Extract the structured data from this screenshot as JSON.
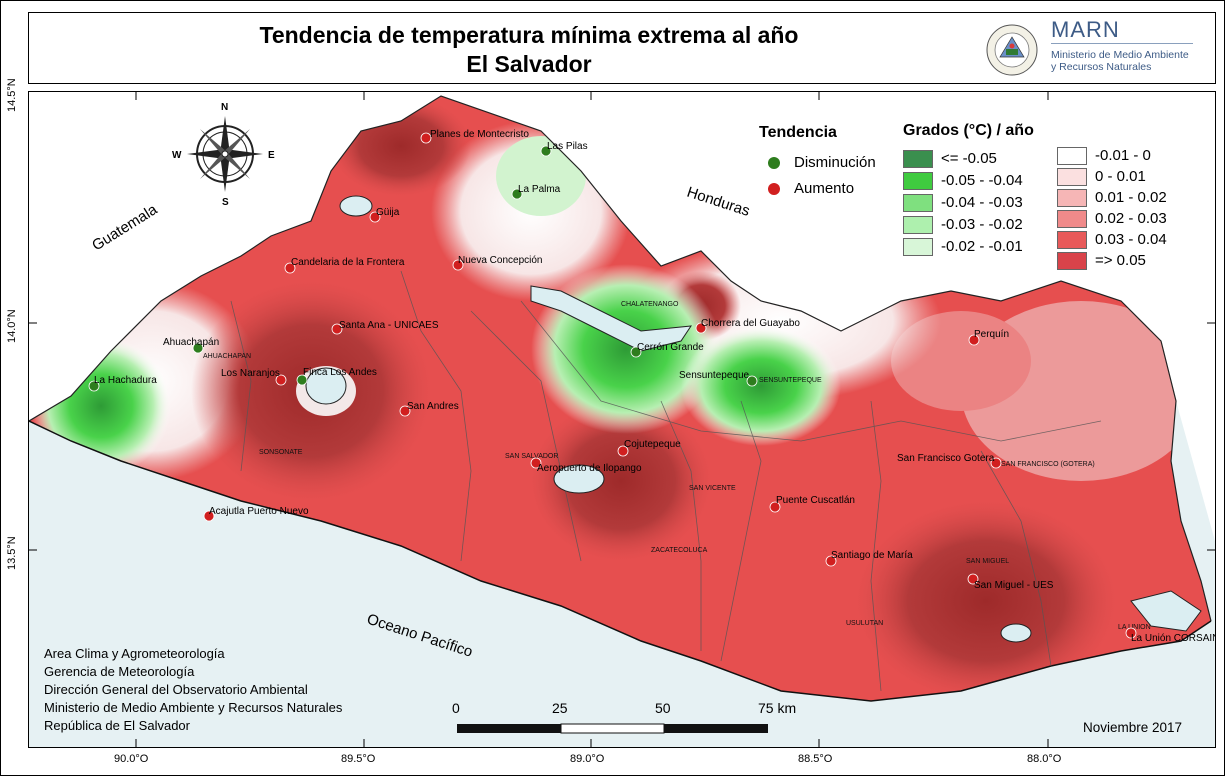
{
  "header": {
    "title_line1": "Tendencia de temperatura mínima extrema al año",
    "title_line2": "El Salvador",
    "logo_name": "MARN",
    "logo_subtitle_1": "Ministerio de Medio Ambiente",
    "logo_subtitle_2": "y Recursos Naturales",
    "seal_text": "REPÚBLICA DE EL SALVADOR EN LA AMÉRICA CENTRAL"
  },
  "axes": {
    "lon_labels": [
      "90.0°O",
      "89.5°O",
      "89.0°O",
      "88.5°O",
      "88.0°O"
    ],
    "lat_labels": [
      "14.5°N",
      "14.0°N",
      "13.5°N"
    ]
  },
  "compass": {
    "n": "N",
    "s": "S",
    "e": "E",
    "w": "W",
    "icon": "compass-rose-icon"
  },
  "legend_trend": {
    "title": "Tendencia",
    "items": [
      {
        "label": "Disminución",
        "color": "#2e7d1e"
      },
      {
        "label": "Aumento",
        "color": "#d11f1f"
      }
    ]
  },
  "legend_degrees": {
    "title": "Grados (°C) / año",
    "col1": [
      {
        "label": "<= -0.05",
        "color": "#3a8f4e"
      },
      {
        "label": "-0.05 - -0.04",
        "color": "#3fcb3f"
      },
      {
        "label": "-0.04 - -0.03",
        "color": "#7fe07f"
      },
      {
        "label": "-0.03 - -0.02",
        "color": "#aef0ae"
      },
      {
        "label": "-0.02 - -0.01",
        "color": "#d8f6d8"
      }
    ],
    "col2": [
      {
        "label": "-0.01 - 0",
        "color": "#ffffff"
      },
      {
        "label": "0 - 0.01",
        "color": "#fbe0e0"
      },
      {
        "label": "0.01 - 0.02",
        "color": "#f6b6b6"
      },
      {
        "label": "0.02 - 0.03",
        "color": "#f08a8a"
      },
      {
        "label": "0.03 - 0.04",
        "color": "#e85a5a"
      },
      {
        "label": "=> 0.05",
        "color": "#d9434a"
      }
    ]
  },
  "regions": {
    "guatemala": "Guatemala",
    "honduras": "Honduras",
    "ocean": "Oceano Pacífico"
  },
  "stations": [
    {
      "name": "Planes de Montecristo",
      "trend": "Aumento"
    },
    {
      "name": "Las Pilas",
      "trend": "Disminución"
    },
    {
      "name": "La Palma",
      "trend": "Disminución"
    },
    {
      "name": "Güija",
      "trend": "Aumento"
    },
    {
      "name": "Nueva Concepción",
      "trend": "Aumento"
    },
    {
      "name": "Candelaria de la Frontera",
      "trend": "Aumento"
    },
    {
      "name": "Santa Ana - UNICAES",
      "trend": "Aumento"
    },
    {
      "name": "Ahuachapán",
      "trend": "Disminución"
    },
    {
      "name": "La Hachadura",
      "trend": "Disminución"
    },
    {
      "name": "Los Naranjos",
      "trend": "Aumento"
    },
    {
      "name": "Finca Los Andes",
      "trend": "Disminución"
    },
    {
      "name": "San Andres",
      "trend": "Aumento"
    },
    {
      "name": "Acajutla Puerto Nuevo",
      "trend": "Aumento"
    },
    {
      "name": "Chorrera del Guayabo",
      "trend": "Aumento"
    },
    {
      "name": "Cerrón Grande",
      "trend": "Disminución"
    },
    {
      "name": "Sensuntepeque",
      "trend": "Disminución"
    },
    {
      "name": "Cojutepeque",
      "trend": "Aumento"
    },
    {
      "name": "Aeropuerto de Ilopango",
      "trend": "Aumento"
    },
    {
      "name": "Puente Cuscatlán",
      "trend": "Aumento"
    },
    {
      "name": "Perquín",
      "trend": "Aumento"
    },
    {
      "name": "San Francisco Gotera",
      "trend": "Aumento"
    },
    {
      "name": "Santiago de María",
      "trend": "Aumento"
    },
    {
      "name": "San Miguel - UES",
      "trend": "Aumento"
    },
    {
      "name": "La Unión CORSAIN",
      "trend": "Aumento"
    }
  ],
  "departments": [
    "AHUACHAPAN",
    "SONSONATE",
    "CHALATENANGO",
    "SENSUNTEPEQUE",
    "SAN SALVADOR",
    "SAN VICENTE",
    "ZACATECOLUCA",
    "USULUTAN",
    "SAN MIGUEL",
    "SAN FRANCISCO (GOTERA)",
    "LA UNION"
  ],
  "scale": {
    "labels": [
      "0",
      "25",
      "50",
      "75 km"
    ]
  },
  "credits": [
    "Area Clima y Agrometeorología",
    "Gerencia de Meteorología",
    "Dirección General del Observatorio Ambiental",
    "Ministerio de Medio Ambiente y Recursos Naturales",
    "República de El Salvador"
  ],
  "date": "Noviembre 2017"
}
